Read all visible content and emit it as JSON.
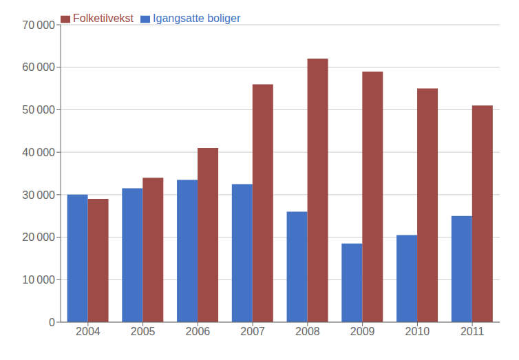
{
  "chart_data": {
    "type": "bar",
    "categories": [
      "2004",
      "2005",
      "2006",
      "2007",
      "2008",
      "2009",
      "2010",
      "2011"
    ],
    "series": [
      {
        "name": "Igangsatte boliger",
        "color": "#4472C4",
        "values": [
          30000,
          31500,
          33500,
          32500,
          26000,
          18500,
          20500,
          25000
        ]
      },
      {
        "name": "Folketilvekst",
        "color": "#9E4B47",
        "values": [
          29000,
          34000,
          41000,
          56000,
          62000,
          59000,
          55000,
          51000
        ]
      }
    ],
    "ylim": [
      0,
      70000
    ],
    "yticks": [
      0,
      {
        "value": 10000,
        "label": "10 000"
      },
      {
        "value": 20000,
        "label": "20 000"
      },
      {
        "value": 30000,
        "label": "30 000"
      },
      {
        "value": 40000,
        "label": "40 000"
      },
      {
        "value": 50000,
        "label": "50 000"
      },
      {
        "value": 60000,
        "label": "60 000"
      },
      {
        "value": 70000,
        "label": "70 000"
      }
    ],
    "grid": true,
    "legend": "upper left"
  }
}
